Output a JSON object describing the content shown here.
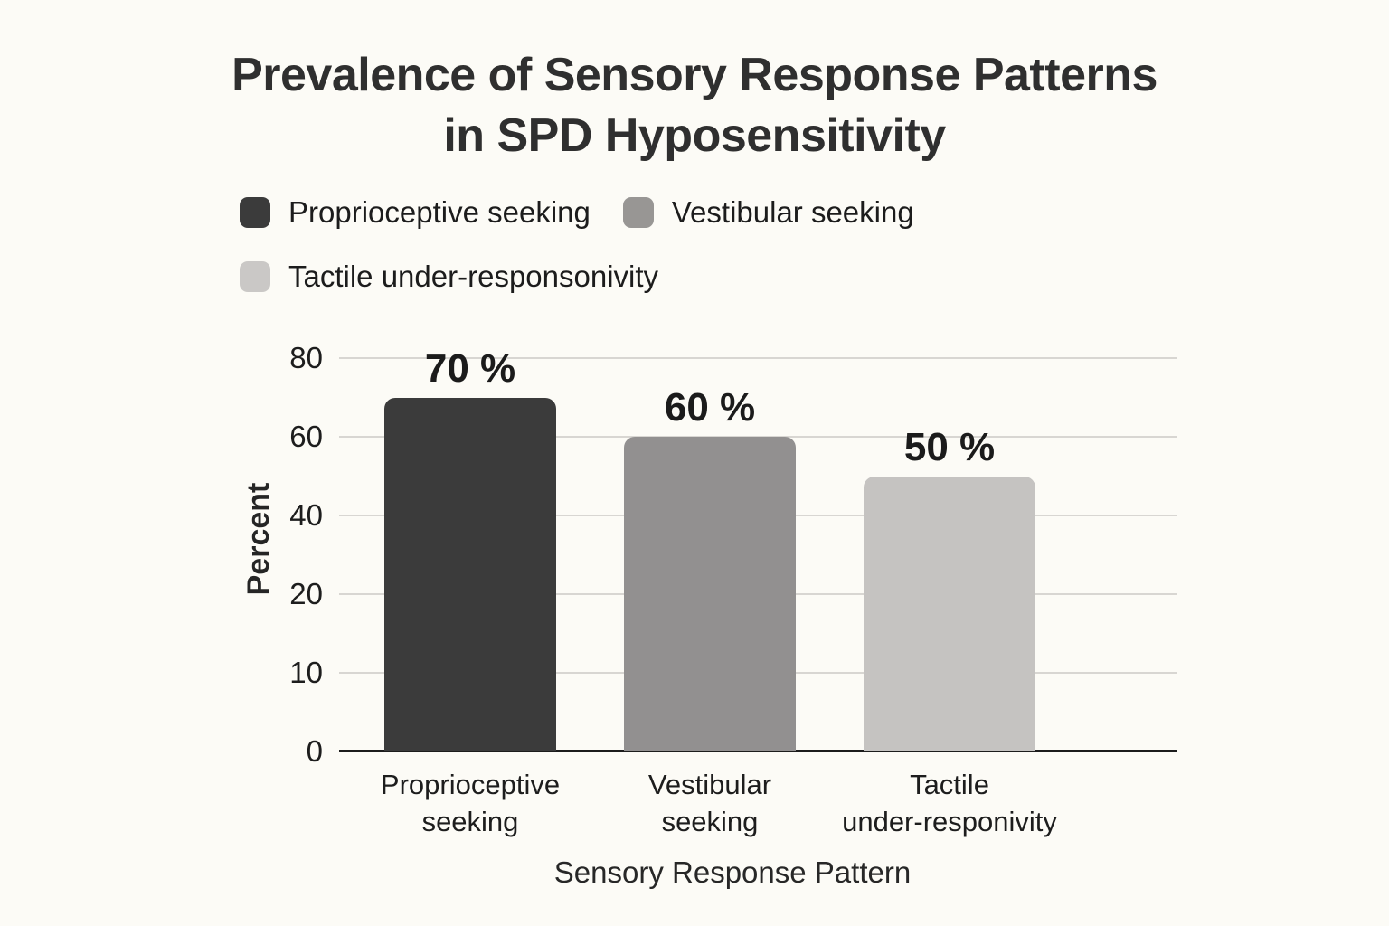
{
  "chart_data": {
    "type": "bar",
    "title": "Prevalence of Sensory Response Patterns in SPD Hyposensitivity",
    "title_lines": [
      "Prevalence of Sensory Response Patterns",
      "in SPD Hyposensitivity"
    ],
    "xlabel": "Sensory Response Pattern",
    "ylabel": "Percent",
    "legend_position": "top-left, two rows",
    "grid": "horizontal gridlines on",
    "background_color": "#fcfbf6",
    "gridline_color": "#d8d6d2",
    "axis_line_color": "#1c1c1c",
    "legend": [
      {
        "label": "Proprioceptive seeking",
        "color": "#3b3b3b"
      },
      {
        "label": "Vestibular seeking",
        "color": "#989694"
      },
      {
        "label": "Tactile under-responsonivity",
        "color": "#cac8c6"
      }
    ],
    "categories": [
      "Proprioceptive seeking",
      "Vestibular seeking",
      "Tactile under-responivity"
    ],
    "values": [
      70,
      60,
      50
    ],
    "bars": [
      {
        "value": 70,
        "value_label": "70 %",
        "color": "#3b3b3b",
        "category_lines": [
          "Proprioceptive",
          "seeking"
        ]
      },
      {
        "value": 60,
        "value_label": "60 %",
        "color": "#929090",
        "category_lines": [
          "Vestibular",
          "seeking"
        ]
      },
      {
        "value": 50,
        "value_label": "50 %",
        "color": "#c5c3c1",
        "category_lines": [
          "Tactile",
          "under-responivity"
        ]
      }
    ],
    "y_axis_ticks_bottom_up": [
      {
        "label": "0",
        "value": 0
      },
      {
        "label": "10",
        "value": 10
      },
      {
        "label": "20",
        "value": 20
      },
      {
        "label": "40",
        "value": 40
      },
      {
        "label": "60",
        "value": 60
      },
      {
        "label": "80",
        "value": 80
      }
    ],
    "ylim_displayed": [
      0,
      80
    ]
  }
}
